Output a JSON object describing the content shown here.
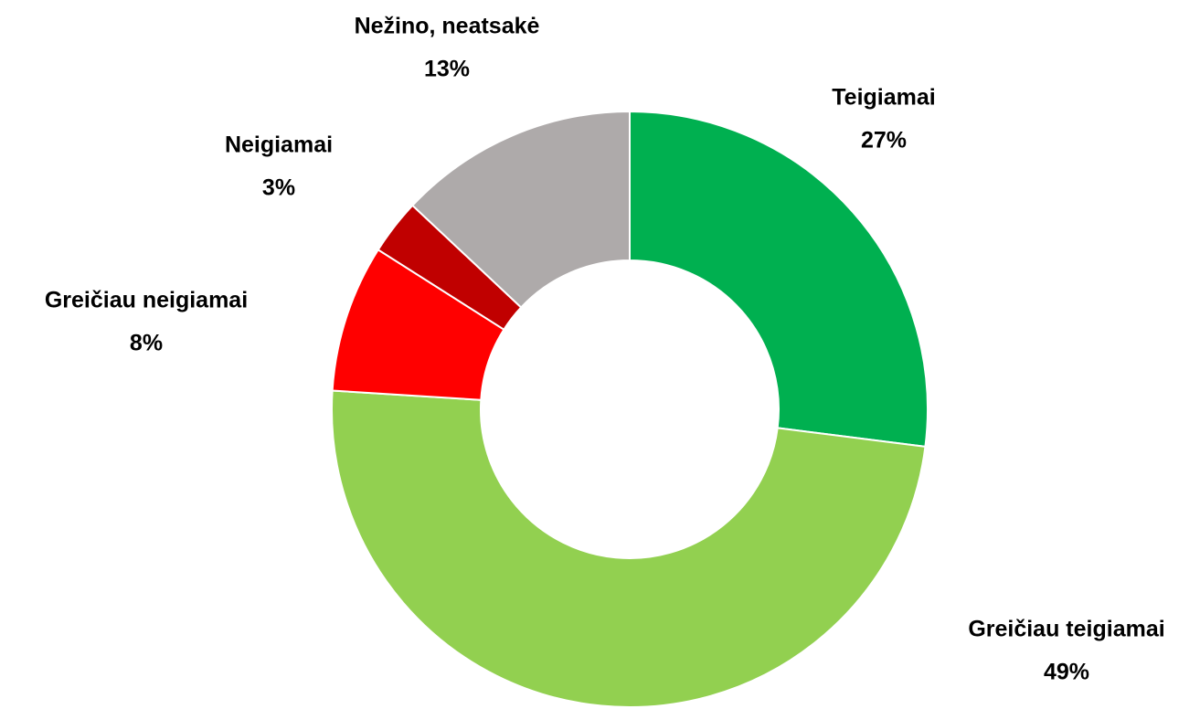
{
  "chart_data": {
    "type": "donut",
    "categories": [
      "Teigiamai",
      "Greičiau teigiamai",
      "Greičiau neigiamai",
      "Neigiamai",
      "Nežino, neatsakė"
    ],
    "values": [
      27,
      49,
      8,
      3,
      13
    ],
    "value_labels": [
      "27%",
      "49%",
      "8%",
      "3%",
      "13%"
    ],
    "colors": [
      "#00b050",
      "#92d050",
      "#ff0000",
      "#c00000",
      "#aeaaaa"
    ]
  }
}
